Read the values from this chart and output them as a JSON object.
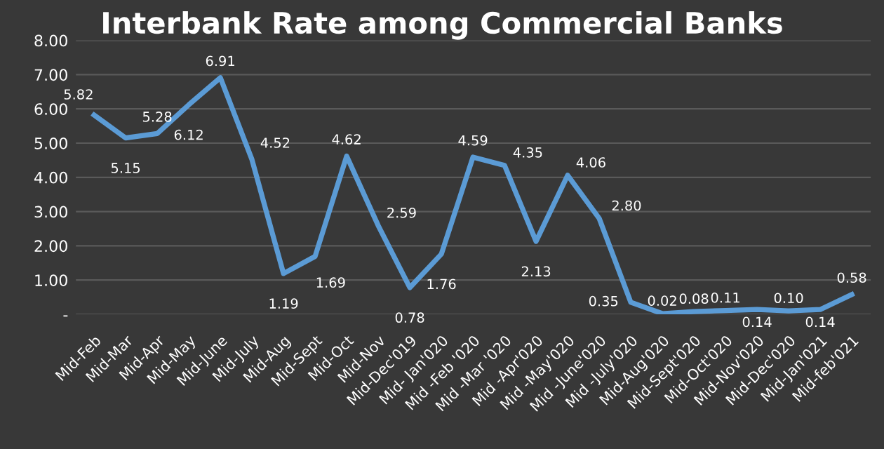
{
  "chart_data": {
    "type": "line",
    "title": "Interbank Rate among Commercial Banks",
    "categories": [
      "Mid-Feb",
      "Mid-Mar",
      "Mid-Apr",
      "Mid-May",
      "Mid-June",
      "Mid-July",
      "Mid-Aug",
      "Mid-Sept",
      "Mid-Oct",
      "Mid-Nov",
      "Mid-Dec'019",
      "Mid- Jan'020",
      "Mid -Feb '020",
      "Mid -Mar '020",
      "Mid -Apr'020",
      "Mid -May'020",
      "Mid -June'020",
      "Mid -July'020",
      "Mid-Aug'020",
      "Mid-Sept'020",
      "Mid-Oct'020",
      "Mid-Nov'020",
      "Mid-Dec'020",
      "Mid-Jan'021",
      "Mid-feb'021"
    ],
    "series": [
      {
        "color": "#5b9bd5",
        "values": [
          5.82,
          5.15,
          5.28,
          6.12,
          6.91,
          4.52,
          1.19,
          1.69,
          4.62,
          2.59,
          0.78,
          1.76,
          4.59,
          4.35,
          2.13,
          4.06,
          2.8,
          0.35,
          0.02,
          0.08,
          0.11,
          0.14,
          0.1,
          0.14,
          0.58
        ],
        "value_labels": [
          "5.82",
          "5.15",
          "5.28",
          "6.12",
          "6.91",
          "4.52",
          "1.19",
          "1.69",
          "4.62",
          "2.59",
          "0.78",
          "1.76",
          "4.59",
          "4.35",
          "2.13",
          "4.06",
          "2.80",
          "0.35",
          "0.02",
          "0.08",
          "0.11",
          "0.14",
          "0.10",
          "0.14",
          "0.58"
        ]
      }
    ],
    "ylim": [
      0,
      8
    ],
    "yticks": [
      {
        "value": 0,
        "label": "-"
      },
      {
        "value": 1,
        "label": "1.00"
      },
      {
        "value": 2,
        "label": "2.00"
      },
      {
        "value": 3,
        "label": "3.00"
      },
      {
        "value": 4,
        "label": "4.00"
      },
      {
        "value": 5,
        "label": "5.00"
      },
      {
        "value": 6,
        "label": "6.00"
      },
      {
        "value": 7,
        "label": "7.00"
      },
      {
        "value": 8,
        "label": "8.00"
      }
    ],
    "grid": "y",
    "marker": "none",
    "line_style": "solid"
  }
}
